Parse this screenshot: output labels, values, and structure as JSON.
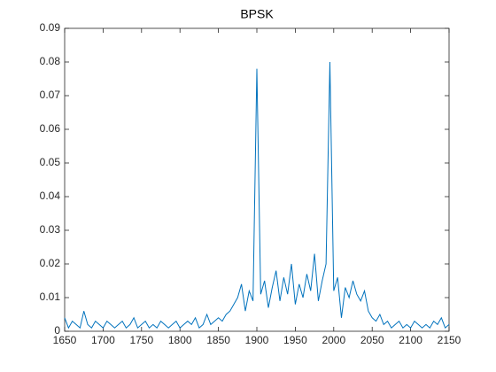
{
  "chart_data": {
    "type": "line",
    "title": "BPSK",
    "x": [
      1650,
      1655,
      1660,
      1665,
      1670,
      1675,
      1680,
      1685,
      1690,
      1695,
      1700,
      1705,
      1710,
      1715,
      1720,
      1725,
      1730,
      1735,
      1740,
      1745,
      1750,
      1755,
      1760,
      1765,
      1770,
      1775,
      1780,
      1785,
      1790,
      1795,
      1800,
      1805,
      1810,
      1815,
      1820,
      1825,
      1830,
      1835,
      1840,
      1845,
      1850,
      1855,
      1860,
      1865,
      1870,
      1875,
      1880,
      1885,
      1890,
      1895,
      1900,
      1905,
      1910,
      1915,
      1920,
      1925,
      1930,
      1935,
      1940,
      1945,
      1950,
      1955,
      1960,
      1965,
      1970,
      1975,
      1980,
      1985,
      1990,
      1995,
      2000,
      2005,
      2010,
      2015,
      2020,
      2025,
      2030,
      2035,
      2040,
      2045,
      2050,
      2055,
      2060,
      2065,
      2070,
      2075,
      2080,
      2085,
      2090,
      2095,
      2100,
      2105,
      2110,
      2115,
      2120,
      2125,
      2130,
      2135,
      2140,
      2145,
      2150
    ],
    "series": [
      {
        "color": "#0072bd",
        "values": [
          0.004,
          0.001,
          0.003,
          0.002,
          0.001,
          0.006,
          0.002,
          0.001,
          0.003,
          0.002,
          0.001,
          0.003,
          0.002,
          0.001,
          0.002,
          0.003,
          0.001,
          0.002,
          0.004,
          0.001,
          0.002,
          0.003,
          0.001,
          0.002,
          0.001,
          0.003,
          0.002,
          0.001,
          0.002,
          0.003,
          0.001,
          0.002,
          0.003,
          0.002,
          0.004,
          0.001,
          0.002,
          0.005,
          0.002,
          0.003,
          0.004,
          0.003,
          0.005,
          0.006,
          0.008,
          0.01,
          0.014,
          0.006,
          0.012,
          0.009,
          0.078,
          0.011,
          0.015,
          0.007,
          0.013,
          0.018,
          0.009,
          0.016,
          0.011,
          0.02,
          0.008,
          0.014,
          0.01,
          0.017,
          0.012,
          0.023,
          0.009,
          0.015,
          0.02,
          0.08,
          0.012,
          0.016,
          0.004,
          0.013,
          0.01,
          0.015,
          0.011,
          0.009,
          0.012,
          0.006,
          0.004,
          0.003,
          0.005,
          0.002,
          0.003,
          0.001,
          0.002,
          0.003,
          0.001,
          0.002,
          0.001,
          0.003,
          0.002,
          0.001,
          0.002,
          0.001,
          0.003,
          0.002,
          0.004,
          0.001,
          0.002
        ]
      }
    ],
    "xlim": [
      1650,
      2150
    ],
    "xticks": [
      1650,
      1700,
      1750,
      1800,
      1850,
      1900,
      1950,
      2000,
      2050,
      2100,
      2150
    ],
    "ylim": [
      0,
      0.09
    ],
    "yticks": [
      0,
      0.01,
      0.02,
      0.03,
      0.04,
      0.05,
      0.06,
      0.07,
      0.08,
      0.09
    ]
  }
}
